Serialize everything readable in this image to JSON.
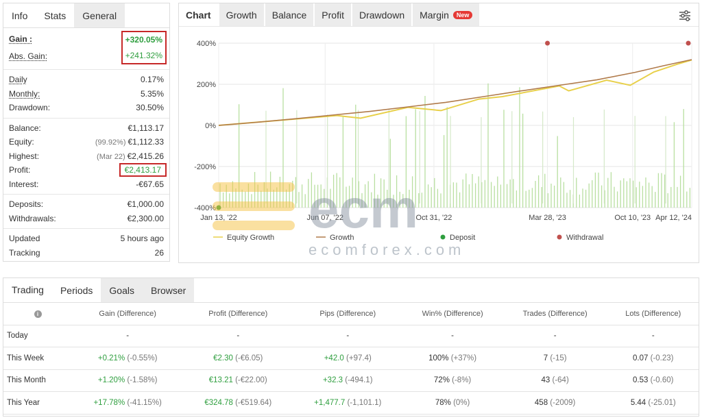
{
  "info_panel": {
    "tabs": [
      "Info",
      "Stats",
      "General"
    ],
    "gain": {
      "label": "Gain :",
      "value": "+320.05%"
    },
    "abs_gain": {
      "label": "Abs. Gain:",
      "value": "+241.32%"
    },
    "daily": {
      "label": "Daily",
      "value": "0.17%"
    },
    "monthly": {
      "label": "Monthly:",
      "value": "5.35%"
    },
    "drawdown": {
      "label": "Drawdown:",
      "value": "30.50%"
    },
    "balance": {
      "label": "Balance:",
      "value": "€1,113.17"
    },
    "equity": {
      "label": "Equity:",
      "sub": "(99.92%)",
      "value": "€1,112.33"
    },
    "highest": {
      "label": "Highest:",
      "sub": "(Mar 22)",
      "value": "€2,415.26"
    },
    "profit": {
      "label": "Profit:",
      "value": "€2,413.17"
    },
    "interest": {
      "label": "Interest:",
      "value": "-€67.65"
    },
    "deposits": {
      "label": "Deposits:",
      "value": "€1,000.00"
    },
    "withdrawals": {
      "label": "Withdrawals:",
      "value": "€2,300.00"
    },
    "updated": {
      "label": "Updated",
      "value": "5 hours ago"
    },
    "tracking": {
      "label": "Tracking",
      "value": "26"
    }
  },
  "chart_panel": {
    "tabs": [
      "Chart",
      "Growth",
      "Balance",
      "Profit",
      "Drawdown",
      "Margin"
    ],
    "new_badge": "New",
    "legend": [
      "Equity Growth",
      "Growth",
      "Deposit",
      "Withdrawal"
    ],
    "colors": {
      "growth": "#b07a4a",
      "equity": "#e8d04a",
      "bars": "#b8dfa0",
      "deposit": "#2e9e3e",
      "withdrawal": "#c0504d"
    }
  },
  "chart_data": {
    "type": "line",
    "x_ticks": [
      "Jan 13, '22",
      "Jun 07, '22",
      "Oct 31, '22",
      "Mar 28, '23",
      "Oct 10, '23",
      "Apr 12, '24"
    ],
    "y_ticks": [
      "400%",
      "200%",
      "0%",
      "-200%",
      "-400%"
    ],
    "ylim": [
      -400,
      400
    ],
    "series": [
      {
        "name": "Growth",
        "x": [
          0,
          0.08,
          0.16,
          0.24,
          0.32,
          0.4,
          0.48,
          0.56,
          0.64,
          0.72,
          0.8,
          0.88,
          0.94,
          1.0
        ],
        "values": [
          0,
          15,
          32,
          50,
          68,
          90,
          112,
          140,
          168,
          195,
          222,
          258,
          290,
          320
        ]
      },
      {
        "name": "Equity Growth",
        "x": [
          0,
          0.25,
          0.3,
          0.4,
          0.47,
          0.55,
          0.6,
          0.72,
          0.74,
          0.82,
          0.87,
          0.92,
          0.97,
          1.0
        ],
        "values": [
          0,
          48,
          35,
          88,
          72,
          128,
          140,
          192,
          168,
          220,
          195,
          260,
          298,
          318
        ]
      }
    ],
    "deposit_point": {
      "x": "Jan 13, '22",
      "y": -400
    },
    "withdrawal_points": [
      {
        "x": "Mar 28, '23",
        "y": 400
      },
      {
        "x": "Apr 12, '24",
        "y": 400
      }
    ]
  },
  "watermark": {
    "brand": "ecm",
    "site": "ecomforex.com"
  },
  "trading_panel": {
    "tabs": [
      "Trading",
      "Periods",
      "Goals",
      "Browser"
    ],
    "headers": [
      "",
      "Gain (Difference)",
      "Profit (Difference)",
      "Pips (Difference)",
      "Win% (Difference)",
      "Trades (Difference)",
      "Lots (Difference)"
    ],
    "rows": [
      {
        "period": "Today",
        "gain": "-",
        "gain_d": "",
        "profit": "-",
        "profit_d": "",
        "pips": "-",
        "pips_d": "",
        "win": "-",
        "win_d": "",
        "trades": "-",
        "trades_d": "",
        "lots": "-",
        "lots_d": ""
      },
      {
        "period": "This Week",
        "gain": "+0.21%",
        "gain_d": "(-0.55%)",
        "profit": "€2.30",
        "profit_d": "(-€6.05)",
        "pips": "+42.0",
        "pips_d": "(+97.4)",
        "win": "100%",
        "win_d": "(+37%)",
        "trades": "7",
        "trades_d": "(-15)",
        "lots": "0.07",
        "lots_d": "(-0.23)"
      },
      {
        "period": "This Month",
        "gain": "+1.20%",
        "gain_d": "(-1.58%)",
        "profit": "€13.21",
        "profit_d": "(-€22.00)",
        "pips": "+32.3",
        "pips_d": "(-494.1)",
        "win": "72%",
        "win_d": "(-8%)",
        "trades": "43",
        "trades_d": "(-64)",
        "lots": "0.53",
        "lots_d": "(-0.60)"
      },
      {
        "period": "This Year",
        "gain": "+17.78%",
        "gain_d": "(-41.15%)",
        "profit": "€324.78",
        "profit_d": "(-€519.64)",
        "pips": "+1,477.7",
        "pips_d": "(-1,101.1)",
        "win": "78%",
        "win_d": "(0%)",
        "trades": "458",
        "trades_d": "(-2009)",
        "lots": "5.44",
        "lots_d": "(-25.01)"
      }
    ]
  }
}
